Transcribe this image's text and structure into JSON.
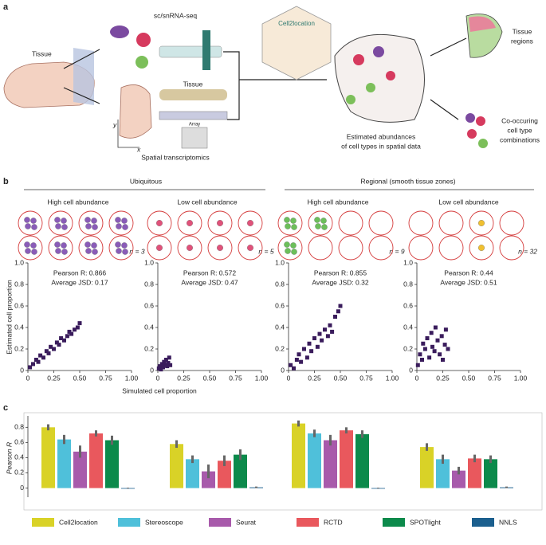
{
  "panel_a": {
    "label": "a",
    "tissue": "Tissue",
    "scrna": "sc/snRNA-seq",
    "tool": "Cell2location",
    "tissue2": "Tissue",
    "array": "Array",
    "spatial": "Spatial transcriptomics",
    "axis_y": "y",
    "axis_x": "x",
    "estimated": [
      "Estimated abundances",
      "of cell types in spatial data"
    ],
    "regions": [
      "Tissue",
      "regions"
    ],
    "cooccur": [
      "Co-occuring",
      "cell type",
      "combinations"
    ]
  },
  "panel_b": {
    "label": "b",
    "group1": "Ubiquitous",
    "group2": "Regional (smooth tissue zones)",
    "subheaders": [
      "High cell abundance",
      "Low cell abundance",
      "High cell abundance",
      "Low cell abundance"
    ],
    "n_labels": [
      "n = 3",
      "n = 5",
      "n = 9",
      "n = 32"
    ],
    "xlabel": "Simulated cell proportion",
    "ylabel": "Estimated cell proportion"
  },
  "panel_c": {
    "label": "c"
  },
  "chart_data": [
    {
      "type": "scatter",
      "color": "#3a1c5c",
      "annotations": [
        "Pearson R: 0.866",
        "Average JSD: 0.17"
      ],
      "x": [
        0.02,
        0.05,
        0.08,
        0.1,
        0.12,
        0.15,
        0.18,
        0.2,
        0.22,
        0.25,
        0.28,
        0.3,
        0.32,
        0.35,
        0.38,
        0.4,
        0.42,
        0.45,
        0.48,
        0.5
      ],
      "y": [
        0.03,
        0.06,
        0.1,
        0.08,
        0.14,
        0.12,
        0.18,
        0.16,
        0.22,
        0.2,
        0.26,
        0.24,
        0.3,
        0.28,
        0.32,
        0.36,
        0.34,
        0.38,
        0.4,
        0.44
      ],
      "xlim": [
        0,
        1
      ],
      "ylim": [
        0,
        1
      ],
      "xticks": [
        0,
        0.25,
        {
          "value": 0.5,
          "label": "0.50"
        },
        0.75,
        {
          "value": 1,
          "label": "1.00"
        }
      ],
      "yticks": [
        0,
        0.2,
        0.4,
        0.6,
        0.8,
        {
          "value": 1,
          "label": "1.0"
        }
      ]
    },
    {
      "type": "scatter",
      "color": "#3a1c5c",
      "annotations": [
        "Pearson R: 0.572",
        "Average JSD: 0.47"
      ],
      "x": [
        0.01,
        0.02,
        0.03,
        0.04,
        0.05,
        0.06,
        0.07,
        0.08,
        0.09,
        0.1,
        0.11,
        0.12
      ],
      "y": [
        0.02,
        0.04,
        0.01,
        0.06,
        0.03,
        0.08,
        0.05,
        0.1,
        0.04,
        0.07,
        0.12,
        0.05
      ],
      "xlim": [
        0,
        1
      ],
      "ylim": [
        0,
        1
      ],
      "xticks": [
        0,
        0.25,
        {
          "value": 0.5,
          "label": "0.50"
        },
        0.75,
        {
          "value": 1,
          "label": "1.00"
        }
      ],
      "yticks": [
        0,
        0.2,
        0.4,
        0.6,
        0.8,
        {
          "value": 1,
          "label": "1.0"
        }
      ]
    },
    {
      "type": "scatter",
      "color": "#3a1c5c",
      "annotations": [
        "Pearson R: 0.855",
        "Average JSD: 0.32"
      ],
      "x": [
        0.02,
        0.05,
        0.08,
        0.1,
        0.12,
        0.15,
        0.18,
        0.2,
        0.22,
        0.25,
        0.28,
        0.3,
        0.32,
        0.35,
        0.38,
        0.4,
        0.42,
        0.45,
        0.48,
        0.5
      ],
      "y": [
        0.05,
        0.02,
        0.1,
        0.15,
        0.08,
        0.2,
        0.12,
        0.25,
        0.18,
        0.3,
        0.22,
        0.34,
        0.28,
        0.38,
        0.32,
        0.42,
        0.36,
        0.5,
        0.55,
        0.6
      ],
      "xlim": [
        0,
        1
      ],
      "ylim": [
        0,
        1
      ],
      "xticks": [
        0,
        0.25,
        {
          "value": 0.5,
          "label": "0.50"
        },
        0.75,
        {
          "value": 1,
          "label": "1.00"
        }
      ],
      "yticks": [
        0,
        0.2,
        0.4,
        0.6,
        0.8,
        {
          "value": 1,
          "label": "1.0"
        }
      ]
    },
    {
      "type": "scatter",
      "color": "#3a1c5c",
      "annotations": [
        "Pearson R: 0.44",
        "Average JSD: 0.51"
      ],
      "x": [
        0.01,
        0.03,
        0.05,
        0.06,
        0.08,
        0.1,
        0.12,
        0.14,
        0.15,
        0.17,
        0.18,
        0.2,
        0.22,
        0.24,
        0.25,
        0.27,
        0.28,
        0.3
      ],
      "y": [
        0.05,
        0.15,
        0.1,
        0.25,
        0.2,
        0.3,
        0.12,
        0.35,
        0.22,
        0.18,
        0.4,
        0.28,
        0.15,
        0.32,
        0.1,
        0.24,
        0.38,
        0.2
      ],
      "xlim": [
        0,
        1
      ],
      "ylim": [
        0,
        1
      ],
      "xticks": [
        0,
        0.25,
        {
          "value": 0.5,
          "label": "0.50"
        },
        0.75,
        {
          "value": 1,
          "label": "1.00"
        }
      ],
      "yticks": [
        0,
        0.2,
        0.4,
        0.6,
        0.8,
        {
          "value": 1,
          "label": "1.0"
        }
      ]
    },
    {
      "type": "bar",
      "ylabel": "Pearson R",
      "categories": [
        null,
        null,
        null,
        null
      ],
      "ylim": [
        -0.12,
        0.95
      ],
      "yticks": [
        0,
        0.2,
        0.4,
        0.6,
        0.8
      ],
      "series": [
        {
          "name": "Cell2location",
          "color": "#d9d227",
          "values": [
            0.8,
            0.58,
            0.85,
            0.54
          ],
          "errors": [
            0.04,
            0.05,
            0.04,
            0.05
          ]
        },
        {
          "name": "Stereoscope",
          "color": "#4fc0da",
          "values": [
            0.64,
            0.38,
            0.72,
            0.38
          ],
          "errors": [
            0.06,
            0.05,
            0.05,
            0.06
          ]
        },
        {
          "name": "Seurat",
          "color": "#a85aab",
          "values": [
            0.48,
            0.22,
            0.63,
            0.23
          ],
          "errors": [
            0.08,
            0.09,
            0.07,
            0.05
          ]
        },
        {
          "name": "RCTD",
          "color": "#e9585d",
          "values": [
            0.72,
            0.36,
            0.76,
            0.39
          ],
          "errors": [
            0.04,
            0.07,
            0.04,
            0.05
          ]
        },
        {
          "name": "SPOTlight",
          "color": "#0c8a4b",
          "values": [
            0.63,
            0.44,
            0.71,
            0.38
          ],
          "errors": [
            0.06,
            0.07,
            0.05,
            0.05
          ]
        },
        {
          "name": "NNLS",
          "color": "#1b5f8e",
          "values": [
            0.0,
            0.01,
            0.0,
            0.01
          ],
          "errors": [
            0.005,
            0.01,
            0.005,
            0.01
          ]
        }
      ]
    }
  ]
}
